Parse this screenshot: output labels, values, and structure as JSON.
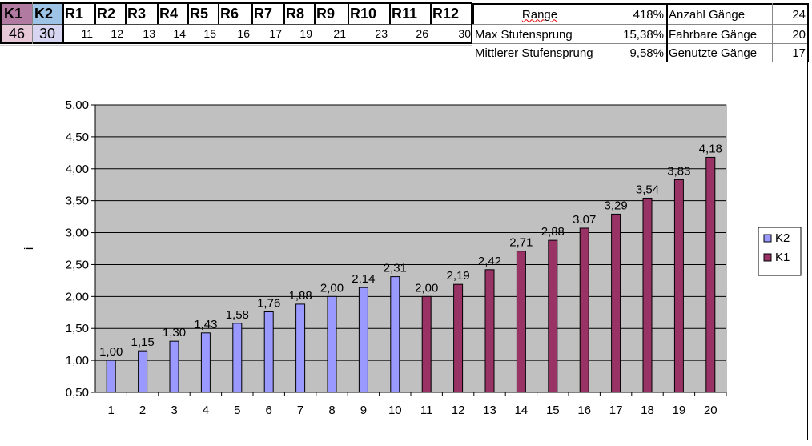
{
  "table": {
    "headers": [
      "K1",
      "K2",
      "R1",
      "R2",
      "R3",
      "R4",
      "R5",
      "R6",
      "R7",
      "R8",
      "R9",
      "R10",
      "R11",
      "R12"
    ],
    "values": [
      "46",
      "30",
      "11",
      "12",
      "13",
      "14",
      "15",
      "16",
      "17",
      "19",
      "21",
      "23",
      "26",
      "30"
    ]
  },
  "stats": {
    "range_label": "Range",
    "range_value": "418%",
    "max_step_label": "Max Stufensprung",
    "max_step_value": "15,38%",
    "mean_step_label": "Mittlerer Stufensprung",
    "mean_step_value": "9,58%",
    "gears_count_label": "Anzahl Gänge",
    "gears_count_value": "24",
    "rideable_label": "Fahrbare Gänge",
    "rideable_value": "20",
    "used_label": "Genutzte Gänge",
    "used_value": "17"
  },
  "chart_data": {
    "type": "bar",
    "title": "",
    "xlabel": "",
    "ylabel": "i",
    "ylim": [
      0.5,
      5.0
    ],
    "ytick_step": 0.5,
    "yticks": [
      "0,50",
      "1,00",
      "1,50",
      "2,00",
      "2,50",
      "3,00",
      "3,50",
      "4,00",
      "4,50",
      "5,00"
    ],
    "categories": [
      "1",
      "2",
      "3",
      "4",
      "5",
      "6",
      "7",
      "8",
      "9",
      "10",
      "11",
      "12",
      "13",
      "14",
      "15",
      "16",
      "17",
      "18",
      "19",
      "20"
    ],
    "grid": true,
    "legend_position": "right",
    "series": [
      {
        "name": "K2",
        "color": "#9999ff",
        "values": [
          1.0,
          1.15,
          1.3,
          1.43,
          1.58,
          1.76,
          1.88,
          2.0,
          2.14,
          2.31,
          null,
          null,
          null,
          null,
          null,
          null,
          null,
          null,
          null,
          null
        ],
        "labels": [
          "1,00",
          "1,15",
          "1,30",
          "1,43",
          "1,58",
          "1,76",
          "1,88",
          "2,00",
          "2,14",
          "2,31",
          "",
          "",
          "",
          "",
          "",
          "",
          "",
          "",
          "",
          ""
        ]
      },
      {
        "name": "K1",
        "color": "#993366",
        "values": [
          null,
          null,
          null,
          null,
          null,
          null,
          null,
          null,
          null,
          null,
          2.0,
          2.19,
          2.42,
          2.71,
          2.88,
          3.07,
          3.29,
          3.54,
          3.83,
          4.18
        ],
        "labels": [
          "",
          "",
          "",
          "",
          "",
          "",
          "",
          "",
          "",
          "",
          "2,00",
          "2,19",
          "2,42",
          "2,71",
          "2,88",
          "3,07",
          "3,29",
          "3,54",
          "3,83",
          "4,18"
        ]
      }
    ]
  }
}
